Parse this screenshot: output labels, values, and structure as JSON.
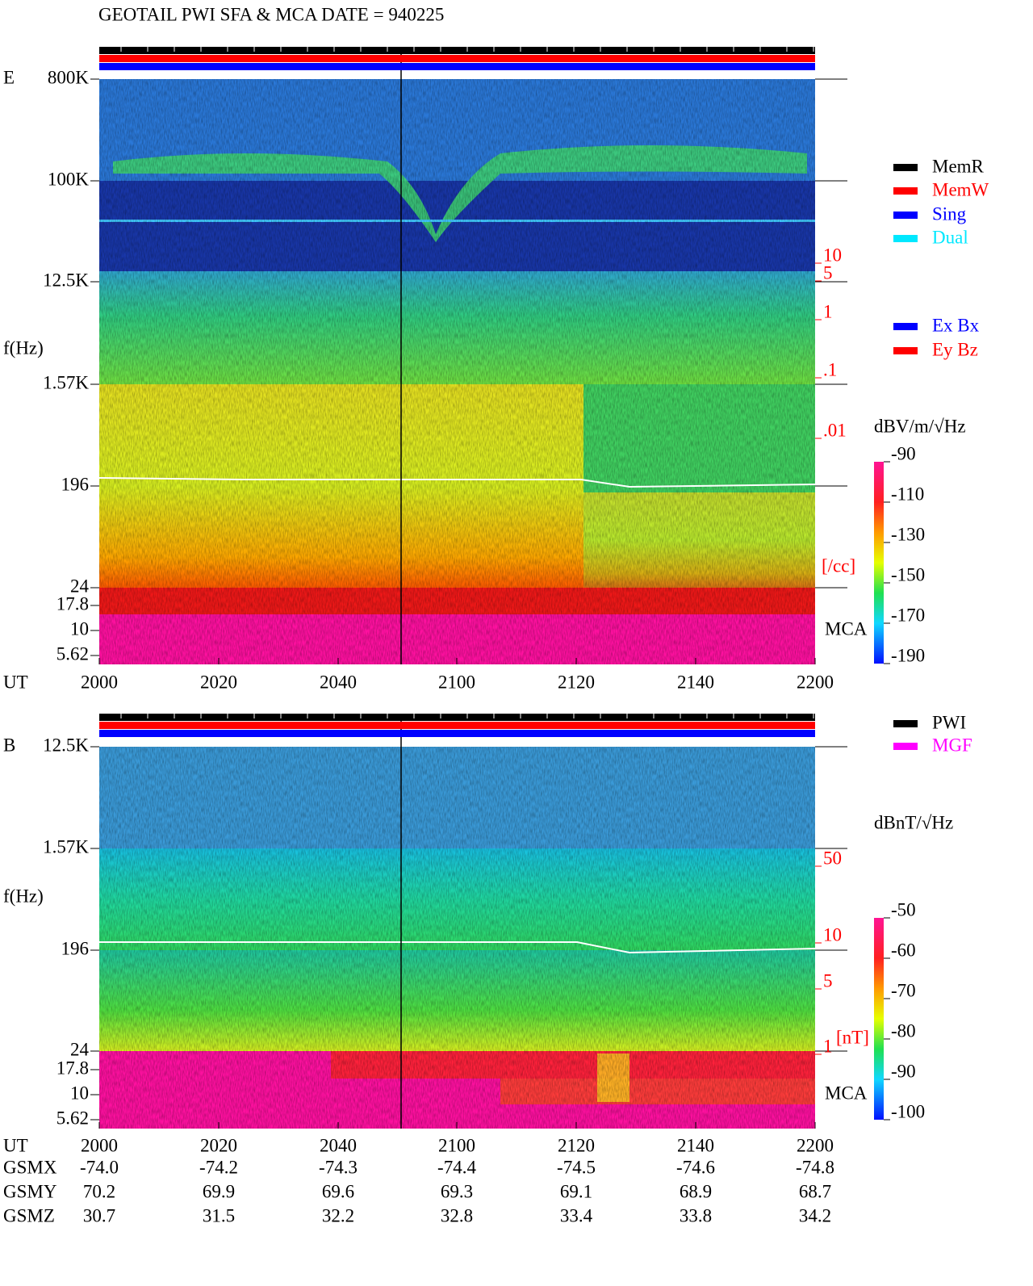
{
  "title": "GEOTAIL   PWI SFA & MCA   DATE = 940225",
  "legend_mode": [
    "MemR",
    "MemW",
    "Sing",
    "Dual"
  ],
  "legend_component": [
    "Ex Bx",
    "Ey Bz"
  ],
  "legend_source": [
    "PWI",
    "MGF"
  ],
  "panels": [
    {
      "label": "E",
      "axis_label": "f(Hz)",
      "freq_ticks": [
        "800K",
        "100K",
        "12.5K",
        "1.57K",
        "196",
        "24",
        "17.8",
        "10",
        "5.62"
      ],
      "right_ticks": [
        "10",
        "5",
        "1",
        ".1",
        ".01"
      ],
      "right_unit": "[/cc]",
      "mca": "MCA",
      "colorbar_unit": "dBV/m/√Hz",
      "colorbar_ticks": [
        "-90",
        "-110",
        "-130",
        "-150",
        "-170",
        "-190"
      ],
      "ut_label": "UT",
      "ut_ticks": [
        "2000",
        "2020",
        "2040",
        "2100",
        "2120",
        "2140",
        "2200"
      ]
    },
    {
      "label": "B",
      "axis_label": "f(Hz)",
      "freq_ticks": [
        "12.5K",
        "1.57K",
        "196",
        "24",
        "17.8",
        "10",
        "5.62"
      ],
      "right_ticks": [
        "50",
        "10",
        "5",
        "1"
      ],
      "right_unit": "[nT]",
      "mca": "MCA",
      "colorbar_unit": "dBnT/√Hz",
      "colorbar_ticks": [
        "-50",
        "-60",
        "-70",
        "-80",
        "-90",
        "-100"
      ],
      "ut_label": "UT",
      "ut_ticks": [
        "2000",
        "2020",
        "2040",
        "2100",
        "2120",
        "2140",
        "2200"
      ]
    }
  ],
  "orbit": [
    {
      "label": "GSMX",
      "values": [
        "-74.0",
        "-74.2",
        "-74.3",
        "-74.4",
        "-74.5",
        "-74.6",
        "-74.8"
      ]
    },
    {
      "label": "GSMY",
      "values": [
        "70.2",
        "69.9",
        "69.6",
        "69.3",
        "69.1",
        "68.9",
        "68.7"
      ]
    },
    {
      "label": "GSMZ",
      "values": [
        "30.7",
        "31.5",
        "32.2",
        "32.8",
        "33.4",
        "33.8",
        "34.2"
      ]
    }
  ]
}
